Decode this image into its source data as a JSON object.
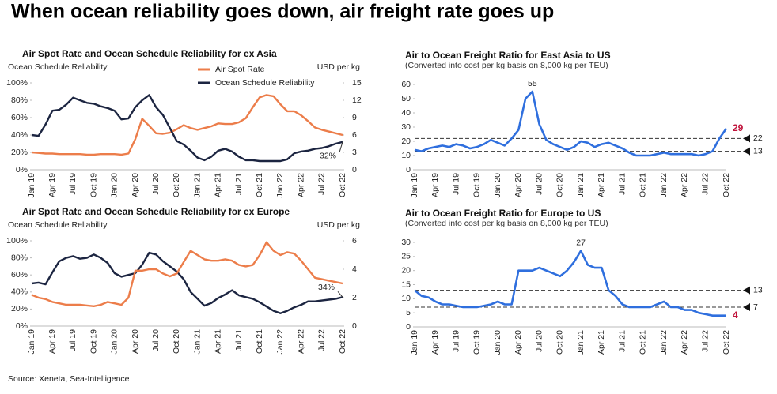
{
  "title": "When ocean reliability goes down, air freight rate goes up",
  "source": "Source: Xeneta, Sea-Intelligence",
  "chart_data": [
    {
      "type": "dual-line",
      "title": "Air Spot Rate and Ocean Schedule Reliability for ex Asia",
      "y_label": "Ocean Schedule Reliability",
      "y2_label": "USD per kg",
      "legend": "top-center",
      "categories": [
        "Jan 19",
        null,
        null,
        "Apr 19",
        null,
        null,
        "Jul 19",
        null,
        null,
        "Oct 19",
        null,
        null,
        "Jan 20",
        null,
        null,
        "Apr 20",
        null,
        null,
        "Jul 20",
        null,
        null,
        "Oct 20",
        null,
        null,
        "Jan 21",
        null,
        null,
        "Apr 21",
        null,
        null,
        "Jul 21",
        null,
        null,
        "Oct 21",
        null,
        null,
        "Jan 22",
        null,
        null,
        "Apr 22",
        null,
        null,
        "Jul 22",
        null,
        null,
        "Oct 22"
      ],
      "ylim": [
        0,
        100
      ],
      "yticks": [
        {
          "value": 0,
          "label": "0%"
        },
        {
          "value": 20,
          "label": "20%"
        },
        {
          "value": 40,
          "label": "40%"
        },
        {
          "value": 60,
          "label": "60%"
        },
        {
          "value": 80,
          "label": "80%"
        },
        {
          "value": 100,
          "label": "100%"
        }
      ],
      "y2lim": [
        0,
        15
      ],
      "y2ticks": [
        0,
        3,
        6,
        9,
        12,
        15
      ],
      "series": [
        {
          "name": "Air Spot Rate",
          "color": "#ec7d4a",
          "axis": "y2",
          "values": [
            3.0,
            2.9,
            2.8,
            2.8,
            2.7,
            2.7,
            2.7,
            2.7,
            2.6,
            2.6,
            2.7,
            2.7,
            2.7,
            2.6,
            2.8,
            5.3,
            8.8,
            7.6,
            6.3,
            6.2,
            6.4,
            7.0,
            7.7,
            7.2,
            6.9,
            7.2,
            7.5,
            8.0,
            7.9,
            7.9,
            8.2,
            8.9,
            10.8,
            12.5,
            12.9,
            12.7,
            11.3,
            10.1,
            10.1,
            9.4,
            8.4,
            7.3,
            6.9,
            6.6,
            6.3,
            6.0
          ]
        },
        {
          "name": "Ocean Schedule Reliability",
          "color": "#1c2541",
          "axis": "y",
          "values": [
            40,
            39,
            52,
            68,
            69,
            75,
            83,
            80,
            77,
            76,
            73,
            71,
            68,
            58,
            59,
            72,
            80,
            86,
            72,
            63,
            48,
            33,
            29,
            22,
            14,
            11,
            15,
            22,
            24,
            21,
            15,
            11,
            11,
            10,
            10,
            10,
            10,
            12,
            19,
            21,
            22,
            24,
            25,
            27,
            30,
            32
          ]
        }
      ],
      "annotations": [
        {
          "text": "32%",
          "series": 1,
          "index": 45
        }
      ]
    },
    {
      "type": "line",
      "title": "Air to Ocean Freight Ratio for East Asia to US",
      "subtitle": "(Converted into cost per kg basis on 8,000 kg per TEU)",
      "categories": [
        "Jan 19",
        null,
        null,
        "Apr 19",
        null,
        null,
        "Jul 19",
        null,
        null,
        "Oct 19",
        null,
        null,
        "Jan 20",
        null,
        null,
        "Apr 20",
        null,
        null,
        "Jul 20",
        null,
        null,
        "Oct 20",
        null,
        null,
        "Jan 21",
        null,
        null,
        "Apr 21",
        null,
        null,
        "Jul 21",
        null,
        null,
        "Oct 21",
        null,
        null,
        "Jan 22",
        null,
        null,
        "Apr 22",
        null,
        null,
        "Jul 22",
        null,
        null,
        "Oct 22"
      ],
      "ylim": [
        0,
        60
      ],
      "yticks": [
        0,
        10,
        20,
        30,
        40,
        50,
        60
      ],
      "color": "#2f6fde",
      "values": [
        14,
        13,
        15,
        16,
        17,
        16,
        18,
        17,
        15,
        16,
        18,
        21,
        19,
        17,
        22,
        28,
        50,
        55,
        32,
        21,
        18,
        16,
        14,
        16,
        20,
        19,
        16,
        18,
        19,
        17,
        15,
        12,
        10,
        10,
        10,
        11,
        12,
        11,
        11,
        11,
        11,
        10,
        11,
        13,
        22,
        29
      ],
      "hlines": [
        22,
        13
      ],
      "annotations": [
        {
          "text": "55",
          "index": 17
        },
        {
          "text": "29",
          "index": 45,
          "color": "#c0143c"
        }
      ]
    },
    {
      "type": "dual-line",
      "title": "Air Spot Rate and Ocean Schedule Reliability for ex Europe",
      "y_label": "Ocean Schedule Reliability",
      "y2_label": "USD per kg",
      "categories": [
        "Jan 19",
        null,
        null,
        "Apr 19",
        null,
        null,
        "Jul 19",
        null,
        null,
        "Oct 19",
        null,
        null,
        "Jan 20",
        null,
        null,
        "Apr 20",
        null,
        null,
        "Jul 20",
        null,
        null,
        "Oct 20",
        null,
        null,
        "Jan 21",
        null,
        null,
        "Apr 21",
        null,
        null,
        "Jul 21",
        null,
        null,
        "Oct 21",
        null,
        null,
        "Jan 22",
        null,
        null,
        "Apr 22",
        null,
        null,
        "Jul 22",
        null,
        null,
        "Oct 22"
      ],
      "ylim": [
        0,
        100
      ],
      "yticks": [
        {
          "value": 0,
          "label": "0%"
        },
        {
          "value": 20,
          "label": "20%"
        },
        {
          "value": 40,
          "label": "40%"
        },
        {
          "value": 60,
          "label": "60%"
        },
        {
          "value": 80,
          "label": "80%"
        },
        {
          "value": 100,
          "label": "100%"
        }
      ],
      "y2lim": [
        0,
        6
      ],
      "y2ticks": [
        0,
        2,
        4,
        6
      ],
      "series": [
        {
          "color": "#1c2541",
          "axis": "y",
          "values": [
            50,
            51,
            49,
            63,
            76,
            80,
            82,
            79,
            80,
            84,
            80,
            74,
            62,
            58,
            60,
            62,
            72,
            86,
            84,
            76,
            70,
            64,
            55,
            40,
            32,
            24,
            27,
            33,
            37,
            42,
            36,
            34,
            32,
            28,
            23,
            18,
            15,
            18,
            22,
            25,
            29,
            29,
            30,
            31,
            32,
            34
          ]
        },
        {
          "color": "#ec7d4a",
          "axis": "y2",
          "values": [
            2.2,
            2.0,
            1.9,
            1.7,
            1.6,
            1.5,
            1.5,
            1.5,
            1.45,
            1.4,
            1.5,
            1.7,
            1.6,
            1.5,
            2.0,
            3.9,
            3.9,
            4.0,
            4.0,
            3.7,
            3.5,
            3.7,
            4.5,
            5.3,
            5.0,
            4.7,
            4.6,
            4.6,
            4.7,
            4.6,
            4.3,
            4.2,
            4.3,
            5.0,
            5.9,
            5.3,
            5.0,
            5.2,
            5.1,
            4.6,
            4.0,
            3.4,
            3.3,
            3.2,
            3.1,
            3.0
          ]
        }
      ],
      "annotations": [
        {
          "text": "34%",
          "series": 0,
          "index": 45
        }
      ]
    },
    {
      "type": "line",
      "title": "Air to Ocean Freight Ratio for Europe to US",
      "subtitle": "(Converted into cost per kg basis on 8,000 kg per TEU)",
      "categories": [
        "Jan 19",
        null,
        null,
        "Apr 19",
        null,
        null,
        "Jul 19",
        null,
        null,
        "Oct 19",
        null,
        null,
        "Jan 20",
        null,
        null,
        "Apr 20",
        null,
        null,
        "Jul 20",
        null,
        null,
        "Oct 20",
        null,
        null,
        "Jan 21",
        null,
        null,
        "Apr 21",
        null,
        null,
        "Jul 21",
        null,
        null,
        "Oct 21",
        null,
        null,
        "Jan 22",
        null,
        null,
        "Apr 22",
        null,
        null,
        "Jul 22",
        null,
        null,
        "Oct 22"
      ],
      "ylim": [
        0,
        30
      ],
      "yticks": [
        0,
        5,
        10,
        15,
        20,
        25,
        30
      ],
      "color": "#2f6fde",
      "values": [
        13,
        11,
        10.5,
        9,
        8,
        8,
        7.5,
        7,
        7,
        7,
        7.5,
        8,
        9,
        8,
        8,
        20,
        20,
        20,
        21,
        20,
        19,
        18,
        20,
        23,
        27,
        22,
        21,
        21,
        13,
        11,
        8,
        7,
        7,
        7,
        7,
        8,
        9,
        7,
        7,
        6,
        6,
        5,
        4.5,
        4,
        4,
        4
      ],
      "hlines": [
        13,
        7
      ],
      "annotations": [
        {
          "text": "27",
          "index": 24
        },
        {
          "text": "4",
          "index": 45,
          "color": "#c0143c"
        }
      ]
    }
  ]
}
